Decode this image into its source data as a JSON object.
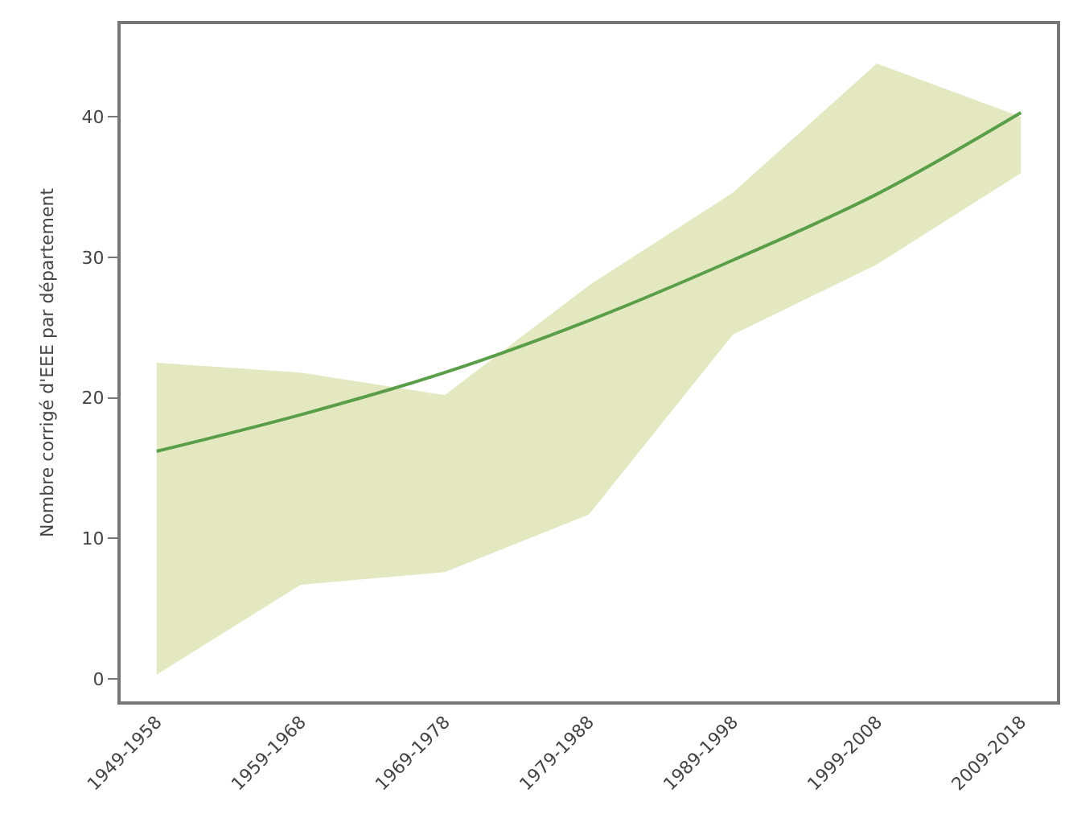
{
  "chart_data": {
    "type": "line",
    "ylabel": "Nombre corrigé d'EEE par département",
    "categories": [
      "1949-1958",
      "1959-1968",
      "1969-1978",
      "1979-1988",
      "1989-1998",
      "1999-2008",
      "2009-2018"
    ],
    "series": [
      {
        "color": "#5a9e4a",
        "values": [
          16.2,
          18.8,
          21.8,
          25.5,
          29.8,
          34.5,
          40.3
        ],
        "lower": [
          0.3,
          6.7,
          7.6,
          11.7,
          24.5,
          29.5,
          36.0
        ],
        "upper": [
          22.5,
          21.8,
          20.2,
          28.0,
          34.6,
          43.8,
          40.0
        ]
      }
    ],
    "ylim": [
      -1.6,
      46.6
    ],
    "yticks": [
      0,
      10,
      20,
      30,
      40
    ],
    "marker": "none",
    "line_style": "solid"
  }
}
